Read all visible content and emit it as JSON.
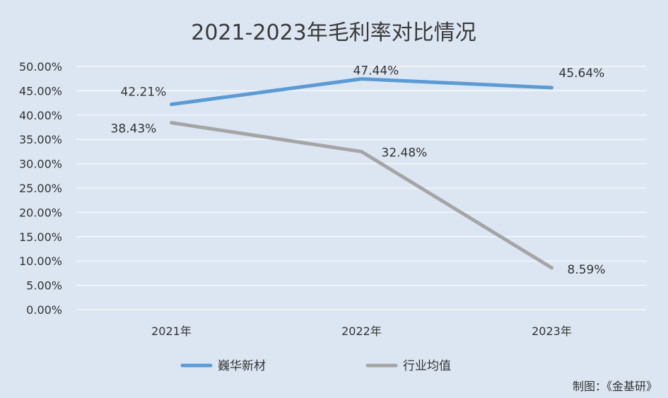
{
  "chart_data": {
    "type": "line",
    "title": "2021-2023年毛利率对比情况",
    "categories": [
      "2021年",
      "2022年",
      "2023年"
    ],
    "series": [
      {
        "name": "巍华新材",
        "values": [
          42.21,
          47.44,
          45.64
        ],
        "labels": [
          "42.21%",
          "47.44%",
          "45.64%"
        ],
        "color": "#5b9bd5"
      },
      {
        "name": "行业均值",
        "values": [
          38.43,
          32.48,
          8.59
        ],
        "labels": [
          "38.43%",
          "32.48%",
          "8.59%"
        ],
        "color": "#a5a5a5"
      }
    ],
    "ylim": [
      0,
      50
    ],
    "yticks": [
      "0.00%",
      "5.00%",
      "10.00%",
      "15.00%",
      "20.00%",
      "25.00%",
      "30.00%",
      "35.00%",
      "40.00%",
      "45.00%",
      "50.00%"
    ],
    "xlabel": "",
    "ylabel": "",
    "grid": true,
    "legend_position": "bottom"
  },
  "credit": "制图：《金基研》"
}
